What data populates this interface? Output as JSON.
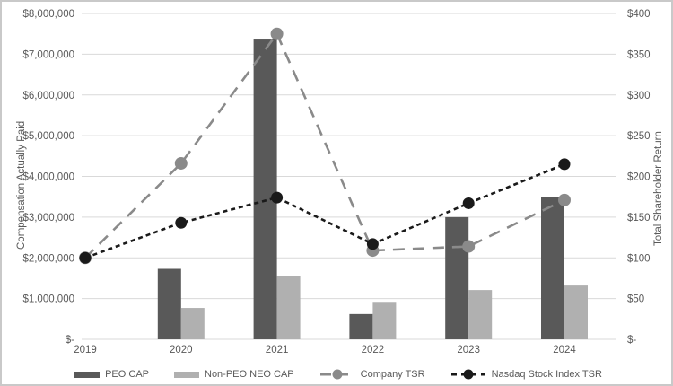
{
  "chart_data": {
    "type": "combo-bar-line",
    "categories": [
      "2019",
      "2020",
      "2021",
      "2022",
      "2023",
      "2024"
    ],
    "bar_series": [
      {
        "name": "PEO CAP",
        "axis": "left",
        "color": "#595959",
        "values": [
          0,
          1730000,
          7360000,
          620000,
          3000000,
          3500000
        ]
      },
      {
        "name": "Non-PEO NEO CAP",
        "axis": "left",
        "color": "#B0B0B0",
        "values": [
          0,
          770000,
          1560000,
          920000,
          1210000,
          1320000
        ]
      }
    ],
    "line_series": [
      {
        "name": "Company TSR",
        "axis": "right",
        "color": "#8A8A8A",
        "dash": "long",
        "marker_radius": 7,
        "values": [
          100,
          216,
          375,
          109,
          114,
          171
        ]
      },
      {
        "name": "Nasdaq Stock Index TSR",
        "axis": "right",
        "color": "#1A1A1A",
        "dash": "short",
        "marker_radius": 6.5,
        "values": [
          100,
          143,
          174,
          117,
          167,
          215
        ]
      }
    ],
    "left_axis": {
      "title": "Compensation Actually Paid",
      "min": 0,
      "max": 8000000,
      "step": 1000000,
      "tick_labels": [
        "$-",
        "$1,000,000",
        "$2,000,000",
        "$3,000,000",
        "$4,000,000",
        "$5,000,000",
        "$6,000,000",
        "$7,000,000",
        "$8,000,000"
      ]
    },
    "right_axis": {
      "title": "Total Shareholder Return",
      "min": 0,
      "max": 400,
      "step": 50,
      "tick_labels": [
        "$-",
        "$50",
        "$100",
        "$150",
        "$200",
        "$250",
        "$300",
        "$350",
        "$400"
      ]
    },
    "grid": "horizontal",
    "legend_position": "bottom",
    "colors": {
      "gridline": "#D9D9D9",
      "axis_text": "#595959",
      "background": "#FFFFFF"
    }
  }
}
